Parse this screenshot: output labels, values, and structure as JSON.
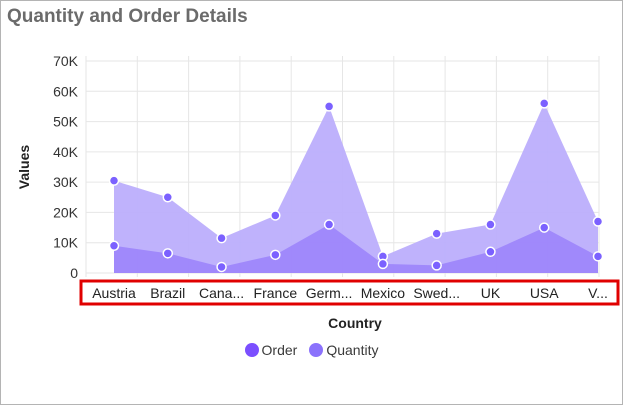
{
  "chart_data": {
    "type": "area",
    "title": "Quantity and Order Details",
    "xlabel": "Country",
    "ylabel": "Values",
    "categories": [
      "Austria",
      "Brazil",
      "Cana...",
      "France",
      "Germ...",
      "Mexico",
      "Swed...",
      "UK",
      "USA",
      "V..."
    ],
    "yticks": [
      "0",
      "10K",
      "20K",
      "30K",
      "40K",
      "50K",
      "60K",
      "70K"
    ],
    "ylim": [
      0,
      70000
    ],
    "grid": true,
    "legend_position": "bottom",
    "series": [
      {
        "name": "Quantity",
        "color": "#7b61ff",
        "fill": "#bcaefc",
        "values": [
          30500,
          25000,
          11500,
          19000,
          55000,
          5500,
          13000,
          16000,
          56000,
          17000
        ]
      },
      {
        "name": "Order",
        "color": "#7b61ff",
        "fill": "#9c84fb",
        "values": [
          9000,
          6500,
          2000,
          6000,
          16000,
          3000,
          2500,
          7000,
          15000,
          5500
        ]
      }
    ],
    "highlighted_region": "x-axis category labels",
    "highlight_color": "#e00000"
  },
  "legend": {
    "items": [
      {
        "label": "Order",
        "color": "#7b61ff"
      },
      {
        "label": "Quantity",
        "color": "#8b72fc"
      }
    ]
  }
}
